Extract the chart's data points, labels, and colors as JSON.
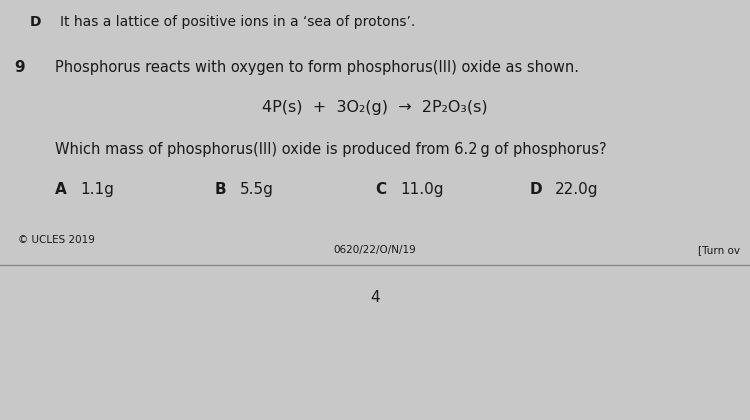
{
  "bg_color": "#c8c8c8",
  "top_line": {
    "letter": "D",
    "text": "It has a lattice of positive ions in a ‘sea of protons’."
  },
  "question_number": "9",
  "question_intro": "Phosphorus reacts with oxygen to form phosphorus(III) oxide as shown.",
  "equation": "4P(s)  +  3O₂(g)  →  2P₂O₃(s)",
  "question_body": "Which mass of phosphorus(III) oxide is produced from 6.2 g of phosphorus?",
  "options": [
    {
      "letter": "A",
      "text": "1.1g"
    },
    {
      "letter": "B",
      "text": "5.5g"
    },
    {
      "letter": "C",
      "text": "11.0g"
    },
    {
      "letter": "D",
      "text": "22.0g"
    }
  ],
  "footer_center": "0620/22/O/N/19",
  "footer_left": "© UCLES 2019",
  "footer_right": "[Turn ov",
  "page_number": "4",
  "font_color": "#1a1a1a"
}
